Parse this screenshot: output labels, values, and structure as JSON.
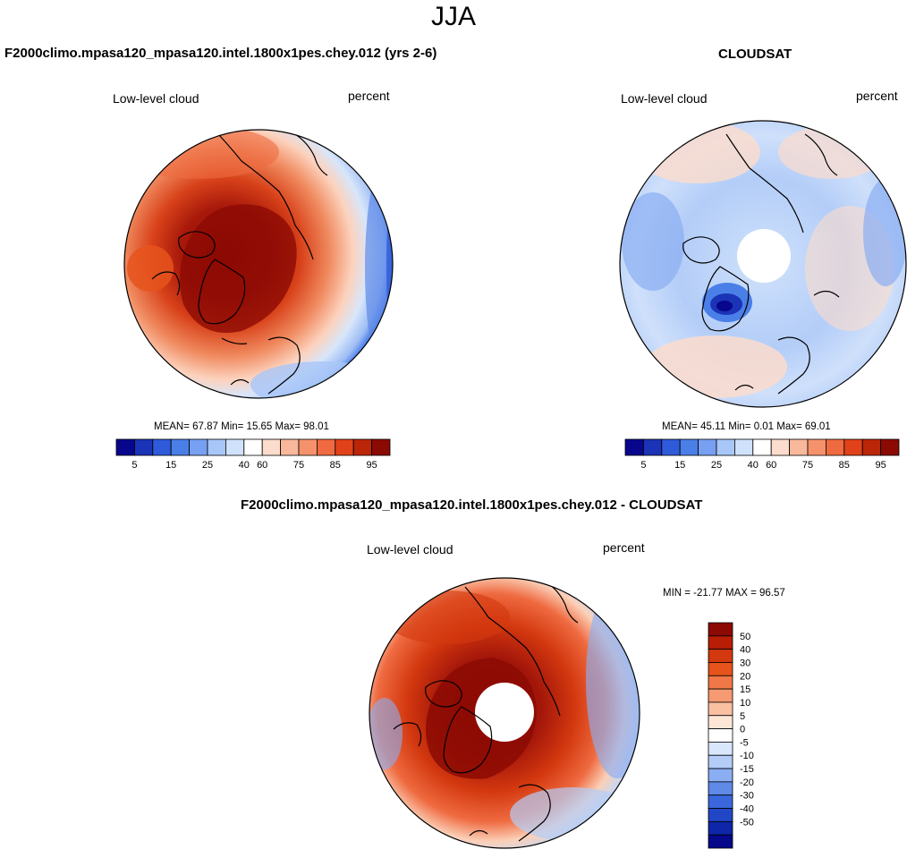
{
  "main_title": "JJA",
  "colors": {
    "abs_scale": [
      "#08068c",
      "#1b33b6",
      "#2f5ad9",
      "#4a7fe8",
      "#779ff2",
      "#a8c6f8",
      "#d0e2fb",
      "#ffffff",
      "#fcdccc",
      "#f9b89b",
      "#f5926c",
      "#ef6a40",
      "#e14219",
      "#bb2609",
      "#8c0a04"
    ],
    "diff_scale_top_to_bottom": [
      "#8c0a04",
      "#b81d06",
      "#d3380f",
      "#e6531c",
      "#f07746",
      "#f59a72",
      "#fac0a2",
      "#fde6d6",
      "#ffffff",
      "#d8e7fb",
      "#b3cdf8",
      "#8aaef2",
      "#5f8ae8",
      "#3a68dc",
      "#2147c6",
      "#0e26a8",
      "#05098a"
    ]
  },
  "panels": {
    "model": {
      "title": "F2000climo.mpasa120_mpasa120.intel.1800x1pes.chey.012 (yrs 2-6)",
      "var_label": "Low-level cloud",
      "units": "percent",
      "stats": "MEAN=  67.87  Min=  15.65  Max=  98.01"
    },
    "obs": {
      "title": "CLOUDSAT",
      "var_label": "Low-level cloud",
      "units": "percent",
      "stats": "MEAN=  45.11  Min=   0.01  Max=  69.01"
    },
    "diff": {
      "title": "F2000climo.mpasa120_mpasa120.intel.1800x1pes.chey.012 - CLOUDSAT",
      "var_label": "Low-level cloud",
      "units": "percent",
      "stats": "MIN = -21.77 MAX =  96.57"
    }
  },
  "abs_colorbar_ticks": [
    "5",
    "15",
    "25",
    "40",
    "60",
    "75",
    "85",
    "95"
  ],
  "diff_colorbar_ticks": [
    "50",
    "40",
    "30",
    "20",
    "15",
    "10",
    "5",
    "0",
    "-5",
    "-10",
    "-15",
    "-20",
    "-30",
    "-40",
    "-50"
  ]
}
